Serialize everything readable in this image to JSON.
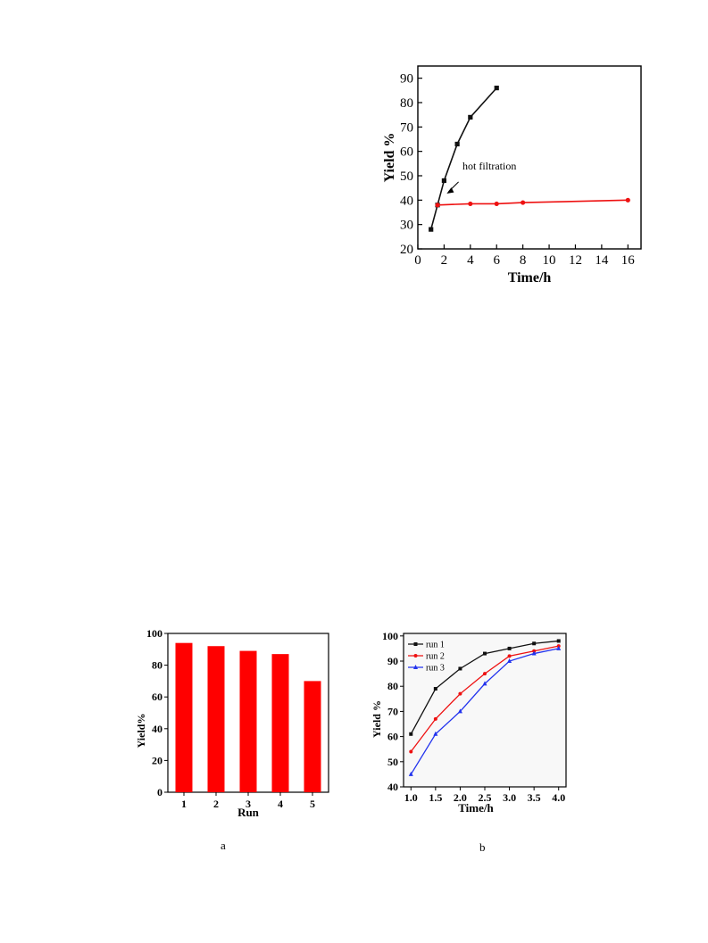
{
  "chart_data": [
    {
      "id": "top",
      "type": "line",
      "xlabel": "Time/h",
      "ylabel": "Yield %",
      "xlim": [
        0,
        17
      ],
      "ylim": [
        20,
        95
      ],
      "xticks": [
        0,
        2,
        4,
        6,
        8,
        10,
        12,
        14,
        16
      ],
      "yticks": [
        20,
        30,
        40,
        50,
        60,
        70,
        80,
        90
      ],
      "annotation": "hot filtration",
      "series": [
        {
          "color": "#111111",
          "marker": "square",
          "x": [
            1,
            1.5,
            2,
            3,
            4,
            6
          ],
          "y": [
            28,
            38,
            48,
            63,
            74,
            86
          ]
        },
        {
          "color": "#ee1111",
          "marker": "circle",
          "x": [
            1.5,
            4,
            6,
            8,
            16
          ],
          "y": [
            38,
            38.5,
            38.5,
            39,
            40
          ]
        }
      ]
    },
    {
      "id": "a",
      "type": "bar",
      "xlabel": "Run",
      "ylabel": "Yield%",
      "ylim": [
        0,
        100
      ],
      "yticks": [
        0,
        20,
        40,
        60,
        80,
        100
      ],
      "categories": [
        "1",
        "2",
        "3",
        "4",
        "5"
      ],
      "values": [
        94,
        92,
        89,
        87,
        70
      ],
      "color": "#ff0000",
      "caption": "a"
    },
    {
      "id": "b",
      "type": "line",
      "xlabel": "Time/h",
      "ylabel": "Yield %",
      "xlim": [
        0.85,
        4.15
      ],
      "ylim": [
        40,
        101
      ],
      "xticks": [
        "1.0",
        "1.5",
        "2.0",
        "2.5",
        "3.0",
        "3.5",
        "4.0"
      ],
      "yticks": [
        40,
        50,
        60,
        70,
        80,
        90,
        100
      ],
      "legend": "top-left",
      "caption": "b",
      "series": [
        {
          "name": "run 1",
          "color": "#111111",
          "marker": "square",
          "x": [
            1.0,
            1.5,
            2.0,
            2.5,
            3.0,
            3.5,
            4.0
          ],
          "y": [
            61,
            79,
            87,
            93,
            95,
            97,
            98
          ]
        },
        {
          "name": "run 2",
          "color": "#ee1111",
          "marker": "circle",
          "x": [
            1.0,
            1.5,
            2.0,
            2.5,
            3.0,
            3.5,
            4.0
          ],
          "y": [
            54,
            67,
            77,
            85,
            92,
            94,
            96
          ]
        },
        {
          "name": "run 3",
          "color": "#2233ee",
          "marker": "triangle",
          "x": [
            1.0,
            1.5,
            2.0,
            2.5,
            3.0,
            3.5,
            4.0
          ],
          "y": [
            45,
            61,
            70,
            81,
            90,
            93,
            95
          ]
        }
      ]
    }
  ]
}
